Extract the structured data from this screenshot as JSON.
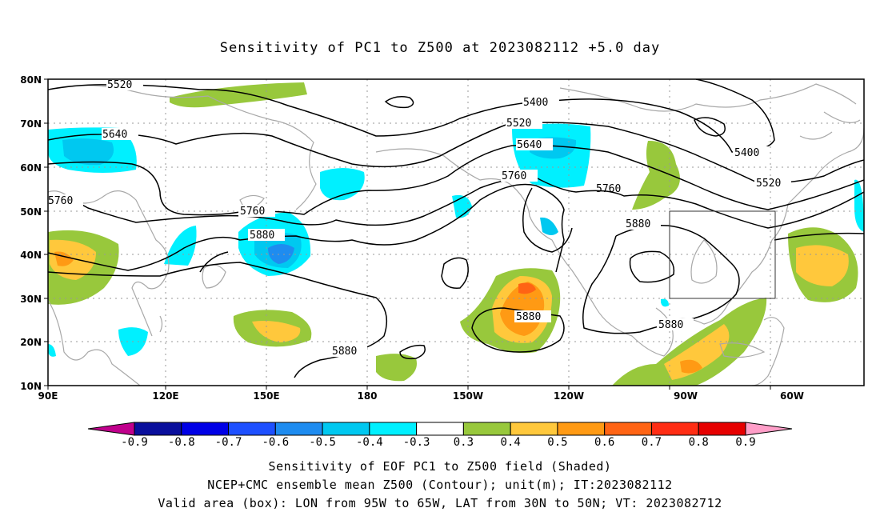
{
  "title": "Sensitivity of PC1 to Z500 at 2023082112 +5.0 day",
  "lat_labels": [
    "80N",
    "70N",
    "60N",
    "50N",
    "40N",
    "30N",
    "20N",
    "10N"
  ],
  "lon_labels": [
    "90E",
    "120E",
    "150E",
    "180",
    "150W",
    "120W",
    "90W",
    "60W"
  ],
  "contour_labels": [
    "5520",
    "5640",
    "5760",
    "5400",
    "5520",
    "5640",
    "5760",
    "5880",
    "5760",
    "5400",
    "5520",
    "5880",
    "5880",
    "5880",
    "5880"
  ],
  "colorbar": {
    "labels": [
      "-0.9",
      "-0.8",
      "-0.7",
      "-0.6",
      "-0.5",
      "-0.4",
      "-0.3",
      "0.3",
      "0.4",
      "0.5",
      "0.6",
      "0.7",
      "0.8",
      "0.9"
    ],
    "colors": [
      "#c0008c",
      "#0a0f9c",
      "#0000e6",
      "#1e50ff",
      "#1e8cf0",
      "#00c8f0",
      "#00f0ff",
      "#ffffff",
      "#98c83c",
      "#ffc83c",
      "#ff9a14",
      "#ff6414",
      "#ff2d14",
      "#e60000",
      "#ff9ec8"
    ]
  },
  "valid_box": {
    "lon_w": -95,
    "lon_e": -65,
    "lat_s": 30,
    "lat_n": 50
  },
  "captions": {
    "line1": "Sensitivity of EOF PC1 to Z500 field (Shaded)",
    "line2": "NCEP+CMC ensemble mean Z500 (Contour); unit(m); IT:2023082112",
    "line3": "Valid area (box): LON from 95W to 65W, LAT from 30N to 50N; VT: 2023082712"
  }
}
